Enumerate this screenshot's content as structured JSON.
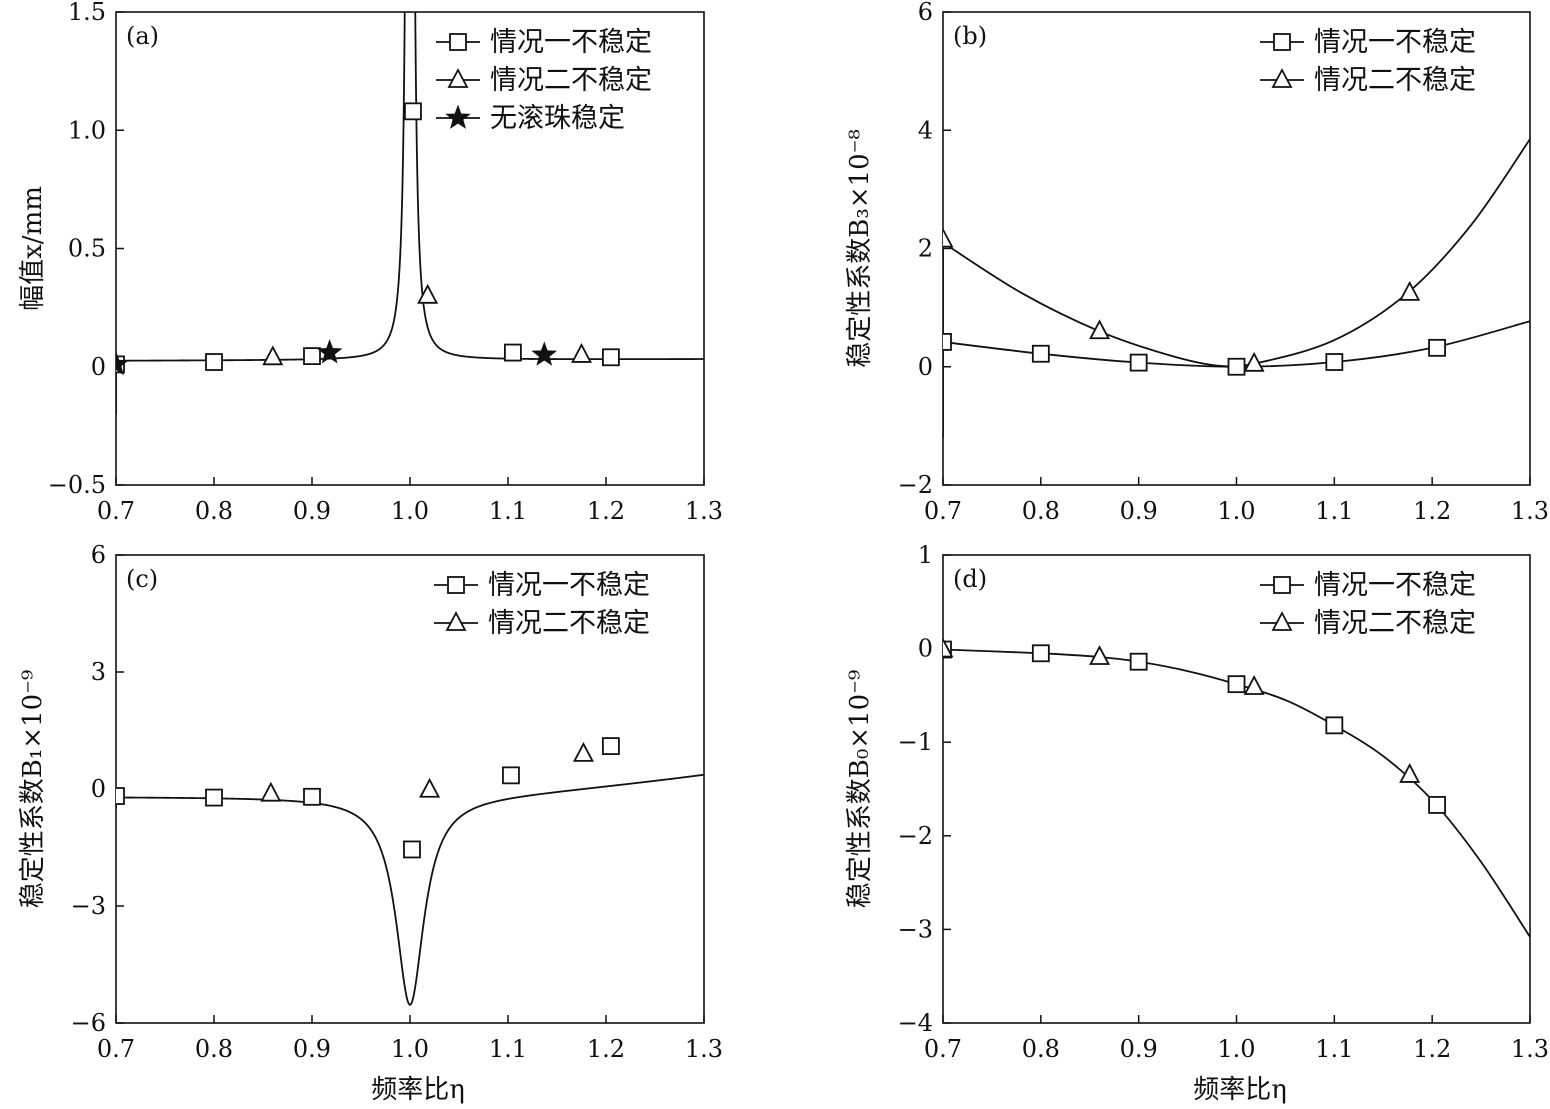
{
  "xlabel": "频率比η",
  "chart_data": [
    {
      "panel": "a",
      "type": "line",
      "tag": "(a)",
      "ylabel": "幅值x/mm",
      "xlim": [
        0.7,
        1.3
      ],
      "ylim": [
        -0.5,
        1.5
      ],
      "xticks": [
        "0.7",
        "0.8",
        "0.9",
        "1.0",
        "1.1",
        "1.2",
        "1.3"
      ],
      "yticks": [
        "−0.5",
        "0",
        "0.5",
        "1.0",
        "1.5"
      ],
      "ytick_values": [
        -0.5,
        0,
        0.5,
        1.0,
        1.5
      ],
      "curve_model": "resonance",
      "legend_placement": "top-right",
      "series": [
        {
          "name": "情况一不稳定",
          "marker": "square",
          "points": [
            [
              0.7,
              0.01
            ],
            [
              0.8,
              0.02
            ],
            [
              0.9,
              0.045
            ],
            [
              1.003,
              1.08
            ],
            [
              1.105,
              0.06
            ],
            [
              1.205,
              0.04
            ]
          ]
        },
        {
          "name": "情况二不稳定",
          "marker": "triangle",
          "points": [
            [
              0.86,
              0.04
            ],
            [
              1.018,
              0.3
            ],
            [
              1.175,
              0.05
            ]
          ]
        },
        {
          "name": "无滚珠稳定",
          "marker": "star",
          "points": [
            [
              0.7,
              0.01
            ],
            [
              0.918,
              0.06
            ],
            [
              1.137,
              0.05
            ]
          ]
        }
      ]
    },
    {
      "panel": "b",
      "type": "line",
      "tag": "(b)",
      "ylabel": "稳定性系数B₃×10⁻⁸",
      "xlim": [
        0.7,
        1.3
      ],
      "ylim": [
        -2,
        6
      ],
      "xticks": [
        "0.7",
        "0.8",
        "0.9",
        "1.0",
        "1.1",
        "1.2",
        "1.3"
      ],
      "yticks": [
        "−2",
        "0",
        "2",
        "4",
        "6"
      ],
      "ytick_values": [
        -2,
        0,
        2,
        4,
        6
      ],
      "legend_placement": "top-right",
      "series": [
        {
          "name": "情况一不稳定",
          "marker": "square",
          "curve": [
            [
              0.7,
              0.42
            ],
            [
              0.8,
              0.22
            ],
            [
              0.9,
              0.07
            ],
            [
              1.0,
              0.0
            ],
            [
              1.1,
              0.08
            ],
            [
              1.2,
              0.32
            ],
            [
              1.3,
              0.77
            ]
          ],
          "points": [
            [
              0.7,
              0.42
            ],
            [
              0.8,
              0.22
            ],
            [
              0.9,
              0.07
            ],
            [
              1.0,
              0.0
            ],
            [
              1.1,
              0.08
            ],
            [
              1.205,
              0.32
            ]
          ]
        },
        {
          "name": "情况二不稳定",
          "marker": "triangle",
          "curve": [
            [
              0.7,
              2.1
            ],
            [
              0.78,
              1.25
            ],
            [
              0.86,
              0.6
            ],
            [
              0.93,
              0.2
            ],
            [
              0.98,
              0.02
            ],
            [
              1.02,
              0.06
            ],
            [
              1.1,
              0.45
            ],
            [
              1.175,
              1.25
            ],
            [
              1.24,
              2.4
            ],
            [
              1.3,
              3.85
            ]
          ],
          "points": [
            [
              0.7,
              2.15
            ],
            [
              0.86,
              0.6
            ],
            [
              1.018,
              0.05
            ],
            [
              1.177,
              1.25
            ]
          ]
        }
      ]
    },
    {
      "panel": "c",
      "type": "line",
      "tag": "(c)",
      "ylabel": "稳定性系数B₁×10⁻⁹",
      "xlim": [
        0.7,
        1.3
      ],
      "ylim": [
        -6,
        6
      ],
      "xticks": [
        "0.7",
        "0.8",
        "0.9",
        "1.0",
        "1.1",
        "1.2",
        "1.3"
      ],
      "yticks": [
        "−6",
        "−3",
        "0",
        "3",
        "6"
      ],
      "ytick_values": [
        -6,
        -3,
        0,
        3,
        6
      ],
      "curve_model": "dip",
      "legend_placement": "top-right",
      "series": [
        {
          "name": "情况一不稳定",
          "marker": "square",
          "points": [
            [
              0.7,
              -0.18
            ],
            [
              0.8,
              -0.22
            ],
            [
              0.9,
              -0.2
            ],
            [
              1.002,
              -1.55
            ],
            [
              1.103,
              0.35
            ],
            [
              1.205,
              1.1
            ]
          ]
        },
        {
          "name": "情况二不稳定",
          "marker": "triangle",
          "points": [
            [
              0.858,
              -0.12
            ],
            [
              1.02,
              -0.02
            ],
            [
              1.177,
              0.9
            ]
          ]
        }
      ]
    },
    {
      "panel": "d",
      "type": "line",
      "tag": "(d)",
      "ylabel": "稳定性系数B₀×10⁻⁹",
      "xlim": [
        0.7,
        1.3
      ],
      "ylim": [
        -4,
        1
      ],
      "xticks": [
        "0.7",
        "0.8",
        "0.9",
        "1.0",
        "1.1",
        "1.2",
        "1.3"
      ],
      "yticks": [
        "−4",
        "−3",
        "−2",
        "−1",
        "0",
        "1"
      ],
      "ytick_values": [
        -4,
        -3,
        -2,
        -1,
        0,
        1
      ],
      "legend_placement": "top-right",
      "series": [
        {
          "name": "情况一不稳定",
          "marker": "square",
          "curve": [
            [
              0.7,
              -0.01
            ],
            [
              0.8,
              -0.05
            ],
            [
              0.86,
              -0.09
            ],
            [
              0.9,
              -0.14
            ],
            [
              0.95,
              -0.24
            ],
            [
              1.0,
              -0.38
            ],
            [
              1.05,
              -0.55
            ],
            [
              1.1,
              -0.82
            ],
            [
              1.15,
              -1.15
            ],
            [
              1.2,
              -1.62
            ],
            [
              1.25,
              -2.28
            ],
            [
              1.3,
              -3.08
            ]
          ],
          "points": [
            [
              0.7,
              -0.01
            ],
            [
              0.8,
              -0.05
            ],
            [
              0.9,
              -0.14
            ],
            [
              1.0,
              -0.38
            ],
            [
              1.1,
              -0.82
            ],
            [
              1.205,
              -1.67
            ]
          ]
        },
        {
          "name": "情况二不稳定",
          "marker": "triangle",
          "points": [
            [
              0.7,
              -0.01
            ],
            [
              0.86,
              -0.09
            ],
            [
              1.018,
              -0.41
            ],
            [
              1.177,
              -1.35
            ]
          ]
        }
      ]
    }
  ]
}
